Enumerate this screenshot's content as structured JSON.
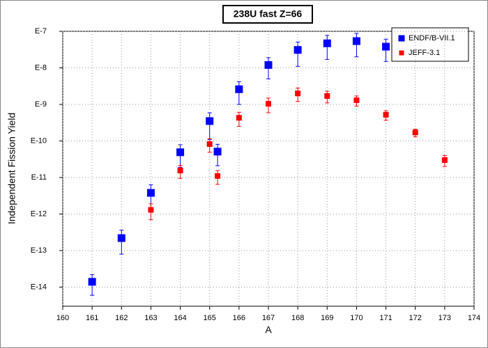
{
  "chart_data": {
    "type": "scatter",
    "title": "238U fast Z=66",
    "x_label": "A",
    "y_label": "Independent Fission Yield",
    "y_scale": "log",
    "grid": true,
    "legend": "upper right",
    "xlim": [
      160,
      174
    ],
    "xticks": [
      160,
      161,
      162,
      163,
      164,
      165,
      166,
      167,
      168,
      169,
      170,
      171,
      172,
      173,
      174
    ],
    "ylim": [
      3e-15,
      1e-07
    ],
    "yticks": [
      {
        "value": 1e-14,
        "label": "E-14"
      },
      {
        "value": 1e-13,
        "label": "E-13"
      },
      {
        "value": 1e-12,
        "label": "E-12"
      },
      {
        "value": 1e-11,
        "label": "E-11"
      },
      {
        "value": 1e-10,
        "label": "E-10"
      },
      {
        "value": 1e-09,
        "label": "E-9"
      },
      {
        "value": 1e-08,
        "label": "E-8"
      },
      {
        "value": 1e-07,
        "label": "E-7"
      }
    ],
    "series": [
      {
        "name": "ENDF/B-VII.1",
        "color": "#0000ff",
        "x": [
          161,
          162,
          163,
          164,
          165,
          165.27,
          166,
          167,
          168,
          169,
          170,
          171
        ],
        "values": [
          1.4e-14,
          2.2e-13,
          3.8e-12,
          4.9e-11,
          3.5e-10,
          5.1e-11,
          2.6e-09,
          1.2e-08,
          3.1e-08,
          4.7e-08,
          5.4e-08,
          3.8e-08
        ],
        "errors": [
          8e-15,
          1.4e-13,
          2.5e-12,
          3e-11,
          2.4e-10,
          3e-11,
          1.6e-09,
          7e-09,
          2e-08,
          3e-08,
          3.4e-08,
          2.3e-08
        ]
      },
      {
        "name": "JEFF-3.1",
        "color": "#ff0000",
        "x": [
          163,
          164,
          165,
          165.27,
          166,
          167,
          168,
          169,
          170,
          171,
          172,
          173
        ],
        "values": [
          1.3e-12,
          1.55e-11,
          8.2e-11,
          1.1e-11,
          4.3e-10,
          1.04e-09,
          2e-09,
          1.7e-09,
          1.3e-09,
          5.2e-10,
          1.7e-10,
          3e-11
        ],
        "errors": [
          6e-13,
          6e-12,
          3.3e-11,
          4.5e-12,
          1.8e-10,
          4.5e-10,
          8e-10,
          6e-10,
          4e-10,
          1.5e-10,
          4e-11,
          1e-11
        ]
      }
    ]
  }
}
